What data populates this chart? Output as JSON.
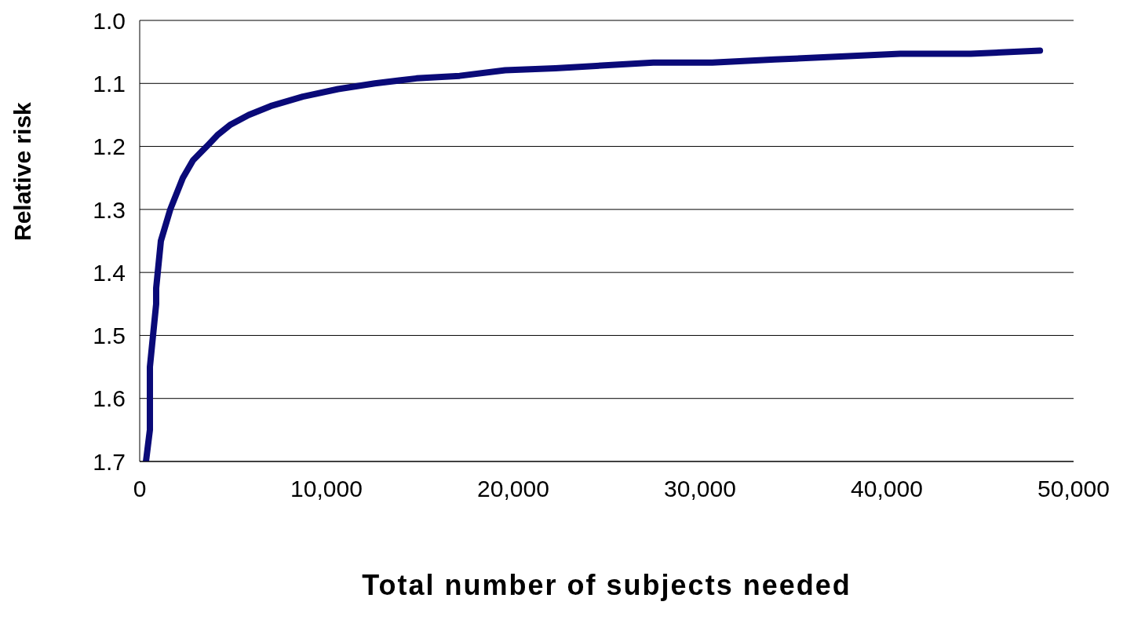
{
  "chart_data": {
    "type": "line",
    "xlabel": "Total number of subjects needed",
    "ylabel": "Relative risk",
    "series": [
      {
        "color": "#0a0a78",
        "x": [
          336,
          546,
          546,
          882,
          882,
          1134,
          1637,
          2309,
          2855,
          3653,
          4200,
          4830,
          5835,
          7011,
          8732,
          10622,
          12595,
          14820,
          17130,
          19565,
          22250,
          27500,
          30650,
          34000,
          40720,
          44500,
          48200
        ],
        "values": [
          1.7,
          1.65,
          1.55,
          1.45,
          1.425,
          1.35,
          1.3,
          1.25,
          1.222,
          1.198,
          1.181,
          1.166,
          1.15,
          1.136,
          1.121,
          1.109,
          1.1,
          1.092,
          1.088,
          1.079,
          1.076,
          1.067,
          1.067,
          1.062,
          1.053,
          1.053,
          1.048
        ]
      }
    ],
    "xlim": [
      0,
      50000
    ],
    "xticks": [
      0,
      {
        "value": 10000,
        "label": "10,000"
      },
      {
        "value": 20000,
        "label": "20,000"
      },
      {
        "value": 30000,
        "label": "30,000"
      },
      {
        "value": 40000,
        "label": "40,000"
      },
      {
        "value": 50000,
        "label": "50,000"
      }
    ],
    "ylim": [
      1.7,
      1.0
    ],
    "yticks": [
      {
        "value": 1.0,
        "label": "1.0"
      },
      1.1,
      1.2,
      1.3,
      1.4,
      1.5,
      1.6,
      1.7
    ],
    "grid": "y",
    "marker": "none",
    "line_style": "solid"
  }
}
